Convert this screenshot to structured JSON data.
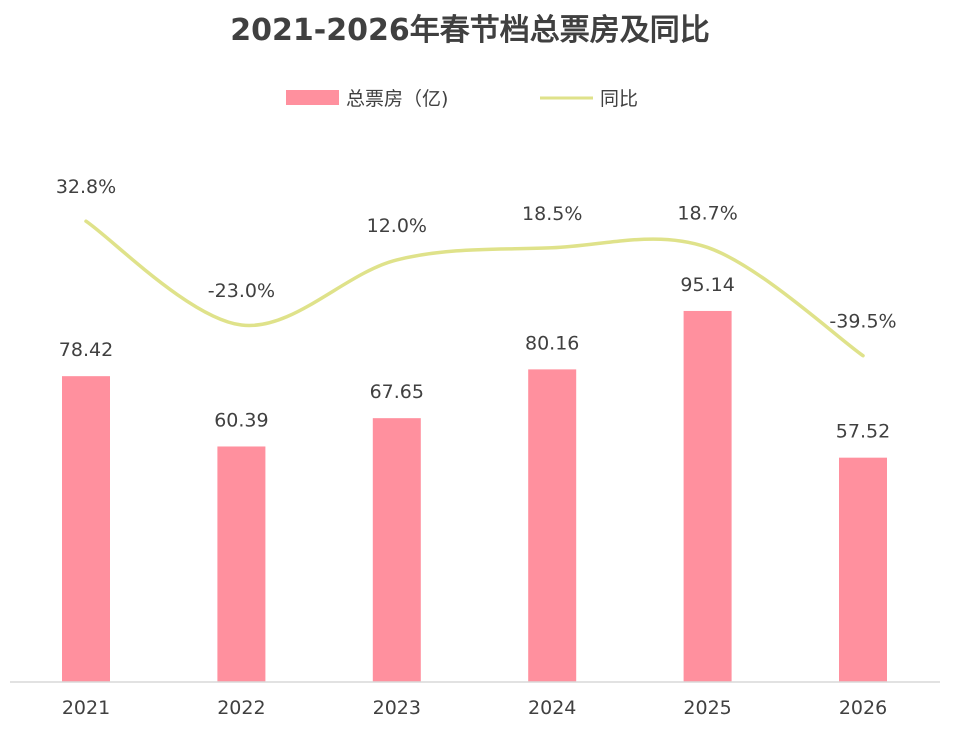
{
  "chart_data": {
    "type": "bar",
    "title": "2021-2026年春节档总票房及同比",
    "categories": [
      "2021",
      "2022",
      "2023",
      "2024",
      "2025",
      "2026"
    ],
    "series": [
      {
        "name": "总票房（亿)",
        "type": "bar",
        "color": "#ff909e",
        "values": [
          78.42,
          60.39,
          67.65,
          80.16,
          95.14,
          57.52
        ],
        "labels": [
          "78.42",
          "60.39",
          "67.65",
          "80.16",
          "95.14",
          "57.52"
        ]
      },
      {
        "name": "同比",
        "type": "line",
        "color": "#dfe28a",
        "values": [
          32.8,
          -23.0,
          12.0,
          18.5,
          18.7,
          -39.5
        ],
        "labels": [
          "32.8%",
          "-23.0%",
          "12.0%",
          "18.5%",
          "18.7%",
          "-39.5%"
        ]
      }
    ],
    "bar_axis_range": [
      0,
      100
    ],
    "line_axis_range": [
      -100,
      55
    ],
    "legend_position": "top",
    "grid": false,
    "line_smooth": true
  }
}
